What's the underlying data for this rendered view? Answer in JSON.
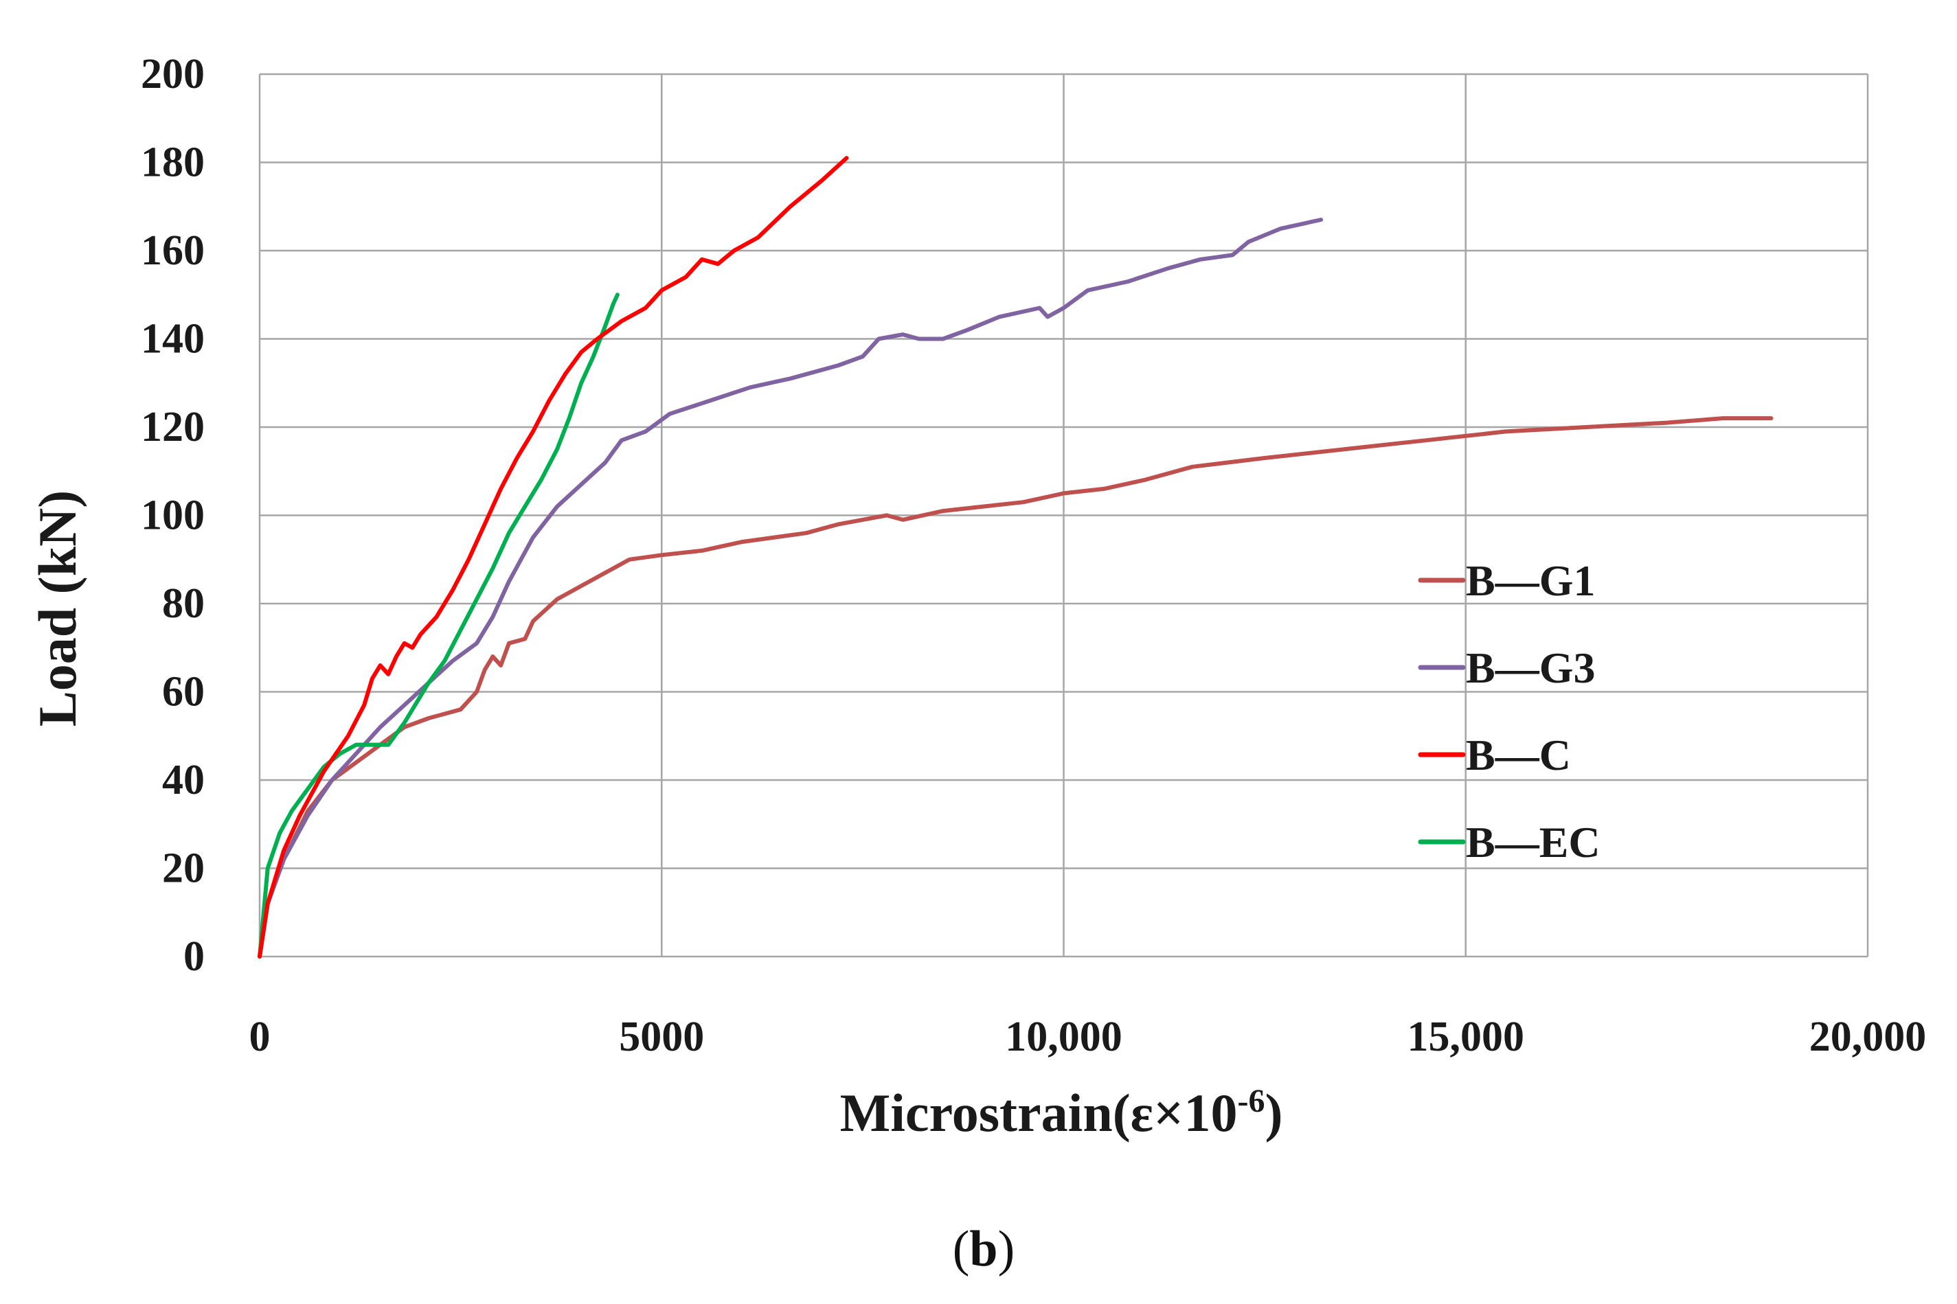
{
  "chart_data": {
    "type": "line",
    "title": "",
    "xlabel": "Microstrain(ε×10",
    "xlabel_superscript": "-6",
    "xlabel_suffix": ")",
    "ylabel": "Load (kN)",
    "xlim": [
      0,
      20000
    ],
    "ylim": [
      0,
      200
    ],
    "x_ticks": [
      0,
      5000,
      10000,
      15000,
      20000
    ],
    "x_tick_labels": [
      "0",
      "5000",
      "10,000",
      "15,000",
      "20,000"
    ],
    "y_ticks": [
      0,
      20,
      40,
      60,
      80,
      100,
      120,
      140,
      160,
      180,
      200
    ],
    "y_tick_labels": [
      "0",
      "20",
      "40",
      "60",
      "80",
      "100",
      "120",
      "140",
      "160",
      "180",
      "200"
    ],
    "grid": true,
    "legend_position": "right",
    "caption": "(b)",
    "caption_bold": "b",
    "series": [
      {
        "name": "B—G1",
        "color": "#c0504d",
        "points": [
          [
            0,
            0
          ],
          [
            100,
            12
          ],
          [
            300,
            22
          ],
          [
            600,
            33
          ],
          [
            900,
            40
          ],
          [
            1200,
            44
          ],
          [
            1500,
            48
          ],
          [
            1800,
            52
          ],
          [
            2100,
            54
          ],
          [
            2500,
            56
          ],
          [
            2700,
            60
          ],
          [
            2800,
            65
          ],
          [
            2900,
            68
          ],
          [
            3000,
            66
          ],
          [
            3100,
            71
          ],
          [
            3300,
            72
          ],
          [
            3400,
            76
          ],
          [
            3700,
            81
          ],
          [
            4000,
            84
          ],
          [
            4300,
            87
          ],
          [
            4600,
            90
          ],
          [
            5000,
            91
          ],
          [
            5500,
            92
          ],
          [
            6000,
            94
          ],
          [
            6800,
            96
          ],
          [
            7200,
            98
          ],
          [
            7800,
            100
          ],
          [
            8000,
            99
          ],
          [
            8500,
            101
          ],
          [
            9000,
            102
          ],
          [
            9500,
            103
          ],
          [
            10000,
            105
          ],
          [
            10500,
            106
          ],
          [
            11000,
            108
          ],
          [
            11600,
            111
          ],
          [
            12500,
            113
          ],
          [
            13500,
            115
          ],
          [
            14500,
            117
          ],
          [
            15500,
            119
          ],
          [
            16500,
            120
          ],
          [
            17500,
            121
          ],
          [
            18200,
            122
          ],
          [
            18800,
            122
          ]
        ]
      },
      {
        "name": "B—G3",
        "color": "#8064a2",
        "points": [
          [
            0,
            0
          ],
          [
            100,
            12
          ],
          [
            300,
            22
          ],
          [
            600,
            32
          ],
          [
            900,
            40
          ],
          [
            1200,
            46
          ],
          [
            1500,
            52
          ],
          [
            1800,
            57
          ],
          [
            2100,
            62
          ],
          [
            2400,
            67
          ],
          [
            2700,
            71
          ],
          [
            2900,
            77
          ],
          [
            3100,
            85
          ],
          [
            3400,
            95
          ],
          [
            3700,
            102
          ],
          [
            4000,
            107
          ],
          [
            4300,
            112
          ],
          [
            4500,
            117
          ],
          [
            4800,
            119
          ],
          [
            5100,
            123
          ],
          [
            5600,
            126
          ],
          [
            6100,
            129
          ],
          [
            6600,
            131
          ],
          [
            7200,
            134
          ],
          [
            7500,
            136
          ],
          [
            7700,
            140
          ],
          [
            8000,
            141
          ],
          [
            8200,
            140
          ],
          [
            8500,
            140
          ],
          [
            8800,
            142
          ],
          [
            9200,
            145
          ],
          [
            9700,
            147
          ],
          [
            9800,
            145
          ],
          [
            10000,
            147
          ],
          [
            10300,
            151
          ],
          [
            10800,
            153
          ],
          [
            11300,
            156
          ],
          [
            11700,
            158
          ],
          [
            12100,
            159
          ],
          [
            12300,
            162
          ],
          [
            12700,
            165
          ],
          [
            13200,
            167
          ]
        ]
      },
      {
        "name": "B—C",
        "color": "#ff0000",
        "points": [
          [
            0,
            0
          ],
          [
            100,
            12
          ],
          [
            300,
            24
          ],
          [
            500,
            32
          ],
          [
            800,
            42
          ],
          [
            1100,
            50
          ],
          [
            1300,
            57
          ],
          [
            1400,
            63
          ],
          [
            1500,
            66
          ],
          [
            1600,
            64
          ],
          [
            1700,
            68
          ],
          [
            1800,
            71
          ],
          [
            1900,
            70
          ],
          [
            2000,
            73
          ],
          [
            2200,
            77
          ],
          [
            2400,
            83
          ],
          [
            2600,
            90
          ],
          [
            2800,
            98
          ],
          [
            3000,
            106
          ],
          [
            3200,
            113
          ],
          [
            3400,
            119
          ],
          [
            3600,
            126
          ],
          [
            3800,
            132
          ],
          [
            4000,
            137
          ],
          [
            4200,
            140
          ],
          [
            4500,
            144
          ],
          [
            4800,
            147
          ],
          [
            5000,
            151
          ],
          [
            5300,
            154
          ],
          [
            5500,
            158
          ],
          [
            5700,
            157
          ],
          [
            5900,
            160
          ],
          [
            6200,
            163
          ],
          [
            6600,
            170
          ],
          [
            7000,
            176
          ],
          [
            7300,
            181
          ]
        ]
      },
      {
        "name": "B—EC",
        "color": "#00b050",
        "points": [
          [
            0,
            0
          ],
          [
            100,
            20
          ],
          [
            250,
            28
          ],
          [
            400,
            33
          ],
          [
            600,
            38
          ],
          [
            800,
            43
          ],
          [
            1000,
            46
          ],
          [
            1200,
            48
          ],
          [
            1400,
            48
          ],
          [
            1600,
            48
          ],
          [
            1800,
            53
          ],
          [
            2100,
            62
          ],
          [
            2300,
            67
          ],
          [
            2500,
            74
          ],
          [
            2700,
            81
          ],
          [
            2900,
            88
          ],
          [
            3100,
            96
          ],
          [
            3300,
            102
          ],
          [
            3500,
            108
          ],
          [
            3700,
            115
          ],
          [
            3850,
            122
          ],
          [
            4000,
            130
          ],
          [
            4150,
            136
          ],
          [
            4300,
            143
          ],
          [
            4400,
            148
          ],
          [
            4450,
            150
          ]
        ]
      }
    ]
  }
}
